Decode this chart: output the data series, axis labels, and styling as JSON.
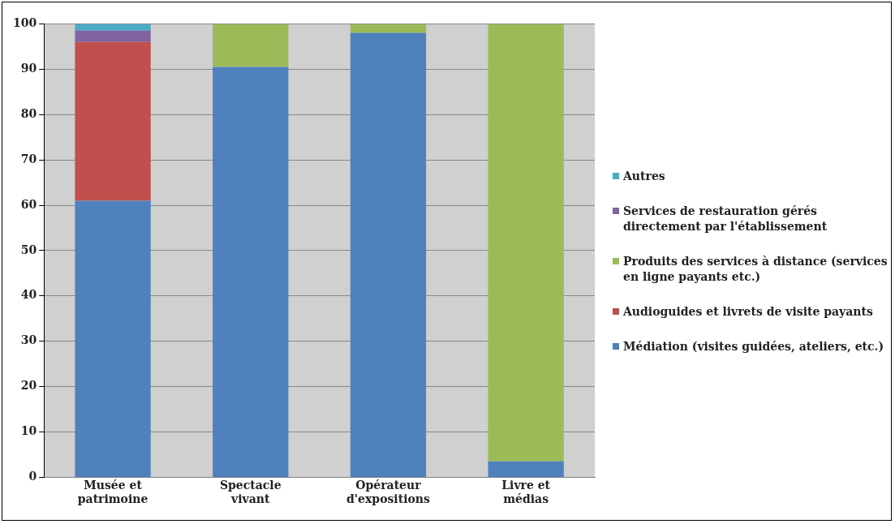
{
  "chart_data": {
    "type": "bar",
    "stacked": true,
    "categories": [
      "Musée et patrimoine",
      "Spectacle vivant",
      "Opérateur d'expositions",
      "Livre et médias"
    ],
    "series": [
      {
        "name": "Médiation (visites guidées, ateliers, etc.)",
        "color": "#4f81bd",
        "values": [
          61,
          90.5,
          98,
          3.5
        ]
      },
      {
        "name": "Audioguides et livrets de visite payants",
        "color": "#c0504d",
        "values": [
          35,
          0,
          0,
          0
        ]
      },
      {
        "name": "Produits des services à distance (services en ligne payants etc.)",
        "color": "#9bbb59",
        "values": [
          0,
          9.5,
          2,
          96.5
        ]
      },
      {
        "name": "Services de restauration gérés directement par l'établissement",
        "color": "#8064a2",
        "values": [
          2.5,
          0,
          0,
          0
        ]
      },
      {
        "name": "Autres",
        "color": "#4bacc6",
        "values": [
          1.5,
          0,
          0,
          0
        ]
      }
    ],
    "ylim": [
      0,
      100
    ],
    "yticks": [
      0,
      10,
      20,
      30,
      40,
      50,
      60,
      70,
      80,
      90,
      100
    ],
    "grid": "y",
    "legend": "right"
  }
}
